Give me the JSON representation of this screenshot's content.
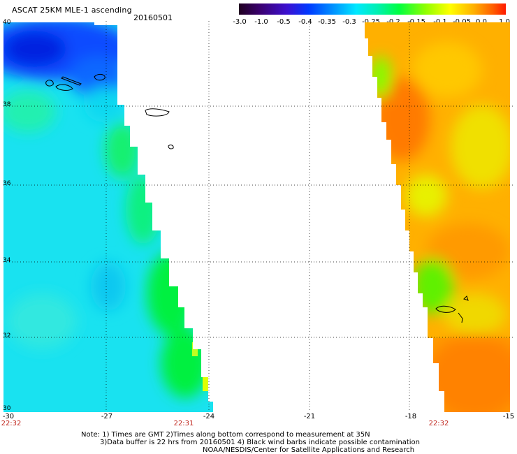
{
  "header": {
    "title": "ASCAT 25KM MLE-1 ascending",
    "date": "20160501"
  },
  "colorbar": {
    "labels": [
      "-3.0",
      "-1.0",
      "-0.5",
      "-0.4",
      "-0.35",
      "-0.3",
      "-0.25",
      "-0.2",
      "-0.15",
      "-0.1",
      "-0.05",
      "0.0",
      "1.0"
    ],
    "colors": [
      "#220022",
      "#3c0070",
      "#4010c8",
      "#0030ff",
      "#0090ff",
      "#00e0ff",
      "#00f0a0",
      "#00ff40",
      "#80ff00",
      "#e0ff00",
      "#ffd000",
      "#ff8000",
      "#ff2000"
    ]
  },
  "map": {
    "lon_range": [
      -30,
      -15
    ],
    "lat_range": [
      30,
      40
    ],
    "lat_labels": [
      "40",
      "38",
      "36",
      "34",
      "32",
      "30"
    ],
    "lon_labels": [
      "-30",
      "-27",
      "-24",
      "-21",
      "-18",
      "-15"
    ],
    "times": [
      "22:32",
      "22:31",
      "22:32"
    ],
    "colors": {
      "grid": "#000000",
      "time": "#c0241c",
      "coast": "#000000"
    }
  },
  "footer": {
    "line1": "Note: 1) Times are GMT 2)Times along bottom correspond to measurement at 35N",
    "line2": "3)Data buffer is 22 hrs from 20160501 4) Black wind barbs indicate possible contamination",
    "line3": "NOAA/NESDIS/Center for Satellite Applications and Research"
  }
}
